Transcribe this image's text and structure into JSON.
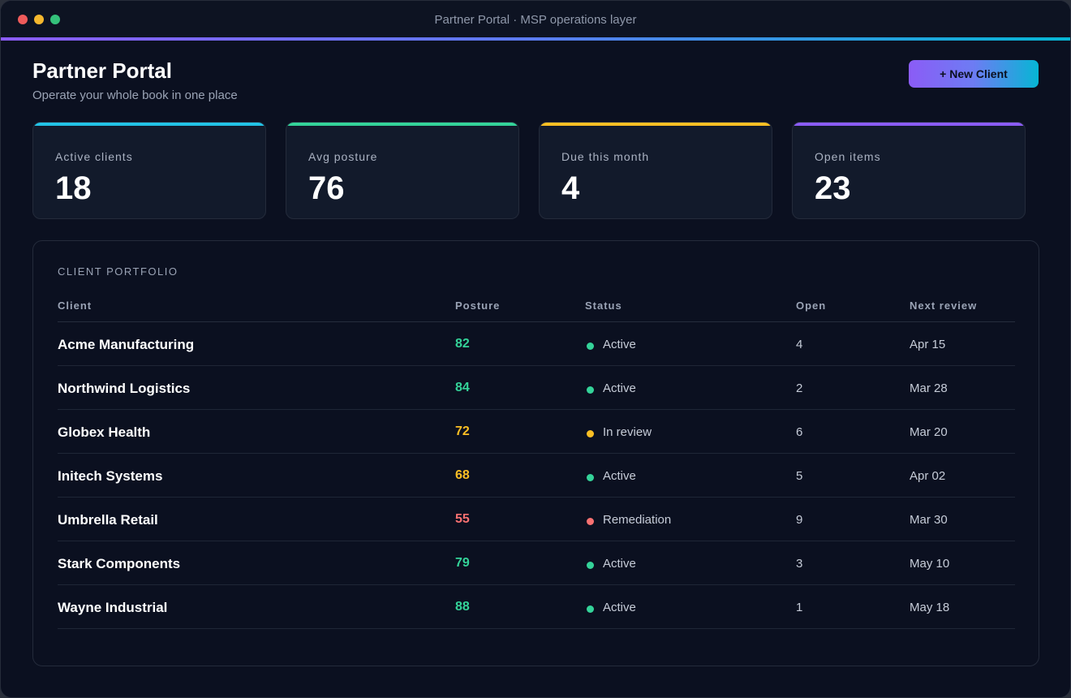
{
  "window": {
    "title": "Partner Portal · MSP operations layer"
  },
  "header": {
    "title": "Partner Portal",
    "subtitle": "Operate your whole book in one place",
    "new_client_label": "+ New Client"
  },
  "stats": [
    {
      "label": "Active clients",
      "value": "18",
      "color": "#22c3e6"
    },
    {
      "label": "Avg posture",
      "value": "76",
      "color": "#34d399"
    },
    {
      "label": "Due this month",
      "value": "4",
      "color": "#fbbf24"
    },
    {
      "label": "Open items",
      "value": "23",
      "color": "#8b5cf6"
    }
  ],
  "portfolio": {
    "title": "CLIENT PORTFOLIO",
    "columns": [
      "Client",
      "Posture",
      "Status",
      "Open",
      "Next review"
    ],
    "rows": [
      {
        "client": "Acme Manufacturing",
        "posture": "82",
        "posture_color": "#34d399",
        "status": "Active",
        "status_color": "#34d399",
        "open": "4",
        "next_review": "Apr 15"
      },
      {
        "client": "Northwind Logistics",
        "posture": "84",
        "posture_color": "#34d399",
        "status": "Active",
        "status_color": "#34d399",
        "open": "2",
        "next_review": "Mar 28"
      },
      {
        "client": "Globex Health",
        "posture": "72",
        "posture_color": "#fbbf24",
        "status": "In review",
        "status_color": "#fbbf24",
        "open": "6",
        "next_review": "Mar 20"
      },
      {
        "client": "Initech Systems",
        "posture": "68",
        "posture_color": "#fbbf24",
        "status": "Active",
        "status_color": "#34d399",
        "open": "5",
        "next_review": "Apr 02"
      },
      {
        "client": "Umbrella Retail",
        "posture": "55",
        "posture_color": "#f87171",
        "status": "Remediation",
        "status_color": "#f87171",
        "open": "9",
        "next_review": "Mar 30"
      },
      {
        "client": "Stark Components",
        "posture": "79",
        "posture_color": "#34d399",
        "status": "Active",
        "status_color": "#34d399",
        "open": "3",
        "next_review": "May 10"
      },
      {
        "client": "Wayne Industrial",
        "posture": "88",
        "posture_color": "#34d399",
        "status": "Active",
        "status_color": "#34d399",
        "open": "1",
        "next_review": "May 18"
      }
    ]
  }
}
